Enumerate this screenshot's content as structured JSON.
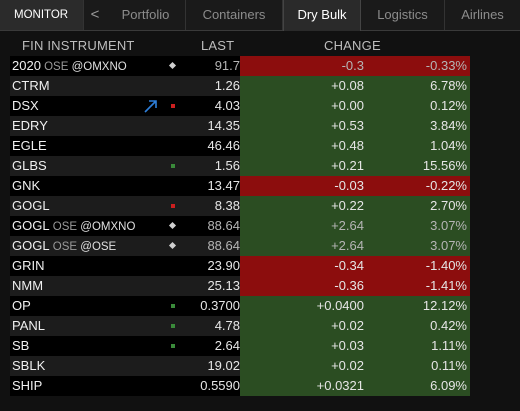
{
  "tabs": {
    "monitor": "MONITOR",
    "back": "<",
    "items": [
      "Portfolio",
      "Containers",
      "Dry Bulk",
      "Logistics",
      "Airlines"
    ],
    "active_index": 2
  },
  "columns": {
    "instrument": "FIN INSTRUMENT",
    "last": "LAST",
    "change": "CHANGE"
  },
  "colors": {
    "positive": "#2b4d22",
    "negative": "#8c0d0d",
    "marker_green": "#3a8a3a",
    "marker_red": "#cc1f1f",
    "trend_arrow": "#2e7fd9"
  },
  "rows": [
    {
      "name": "2020",
      "sub": "OSE",
      "exchange": "@OMXNO",
      "marker": "diamond",
      "last": "91.7",
      "change": "-0.3",
      "pct": "-0.33%",
      "dir": "neg",
      "dim": true
    },
    {
      "name": "CTRM",
      "sub": "",
      "exchange": "",
      "marker": "",
      "last": "1.26",
      "change": "+0.08",
      "pct": "6.78%",
      "dir": "pos",
      "dim": false
    },
    {
      "name": "DSX",
      "sub": "",
      "exchange": "",
      "marker": "red",
      "trend": "up-arrow-icon",
      "last": "4.03",
      "change": "+0.00",
      "pct": "0.12%",
      "dir": "pos",
      "dim": false
    },
    {
      "name": "EDRY",
      "sub": "",
      "exchange": "",
      "marker": "",
      "last": "14.35",
      "change": "+0.53",
      "pct": "3.84%",
      "dir": "pos",
      "dim": false
    },
    {
      "name": "EGLE",
      "sub": "",
      "exchange": "",
      "marker": "",
      "last": "46.46",
      "change": "+0.48",
      "pct": "1.04%",
      "dir": "pos",
      "dim": false
    },
    {
      "name": "GLBS",
      "sub": "",
      "exchange": "",
      "marker": "green",
      "last": "1.56",
      "change": "+0.21",
      "pct": "15.56%",
      "dir": "pos",
      "dim": false
    },
    {
      "name": "GNK",
      "sub": "",
      "exchange": "",
      "marker": "",
      "last": "13.47",
      "change": "-0.03",
      "pct": "-0.22%",
      "dir": "neg",
      "dim": false
    },
    {
      "name": "GOGL",
      "sub": "",
      "exchange": "",
      "marker": "red",
      "last": "8.38",
      "change": "+0.22",
      "pct": "2.70%",
      "dir": "pos",
      "dim": false
    },
    {
      "name": "GOGL",
      "sub": "OSE",
      "exchange": "@OMXNO",
      "marker": "diamond",
      "last": "88.64",
      "change": "+2.64",
      "pct": "3.07%",
      "dir": "pos",
      "dim": true
    },
    {
      "name": "GOGL",
      "sub": "OSE",
      "exchange": "@OSE",
      "marker": "diamond",
      "last": "88.64",
      "change": "+2.64",
      "pct": "3.07%",
      "dir": "pos",
      "dim": true
    },
    {
      "name": "GRIN",
      "sub": "",
      "exchange": "",
      "marker": "",
      "last": "23.90",
      "change": "-0.34",
      "pct": "-1.40%",
      "dir": "neg",
      "dim": false
    },
    {
      "name": "NMM",
      "sub": "",
      "exchange": "",
      "marker": "",
      "last": "25.13",
      "change": "-0.36",
      "pct": "-1.41%",
      "dir": "neg",
      "dim": false
    },
    {
      "name": "OP",
      "sub": "",
      "exchange": "",
      "marker": "green",
      "last": "0.3700",
      "change": "+0.0400",
      "pct": "12.12%",
      "dir": "pos",
      "dim": false
    },
    {
      "name": "PANL",
      "sub": "",
      "exchange": "",
      "marker": "green",
      "last": "4.78",
      "change": "+0.02",
      "pct": "0.42%",
      "dir": "pos",
      "dim": false
    },
    {
      "name": "SB",
      "sub": "",
      "exchange": "",
      "marker": "green",
      "last": "2.64",
      "change": "+0.03",
      "pct": "1.11%",
      "dir": "pos",
      "dim": false
    },
    {
      "name": "SBLK",
      "sub": "",
      "exchange": "",
      "marker": "",
      "last": "19.02",
      "change": "+0.02",
      "pct": "0.11%",
      "dir": "pos",
      "dim": false
    },
    {
      "name": "SHIP",
      "sub": "",
      "exchange": "",
      "marker": "",
      "last": "0.5590",
      "change": "+0.0321",
      "pct": "6.09%",
      "dir": "pos",
      "dim": false
    }
  ]
}
